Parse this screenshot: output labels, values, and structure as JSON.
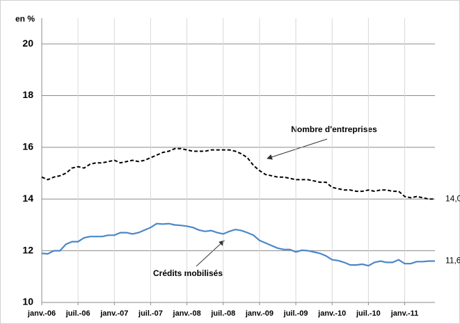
{
  "chart_data": {
    "type": "line",
    "y_label": "en %",
    "categories": [
      "janv.-06",
      null,
      null,
      null,
      null,
      null,
      "juil.-06",
      null,
      null,
      null,
      null,
      null,
      "janv.-07",
      null,
      null,
      null,
      null,
      null,
      "juil.-07",
      null,
      null,
      null,
      null,
      null,
      "janv.-08",
      null,
      null,
      null,
      null,
      null,
      "juil.-08",
      null,
      null,
      null,
      null,
      null,
      "janv.-09",
      null,
      null,
      null,
      null,
      null,
      "juil.-09",
      null,
      null,
      null,
      null,
      null,
      "janv.-10",
      null,
      null,
      null,
      null,
      null,
      "juil.-10",
      null,
      null,
      null,
      null,
      null,
      "janv.-11",
      null,
      null,
      null,
      null,
      null
    ],
    "series": [
      {
        "name": "Nombre d'entreprises",
        "color": "#000000",
        "dashed": true,
        "values": [
          14.85,
          14.75,
          14.85,
          14.9,
          15.0,
          15.2,
          15.25,
          15.2,
          15.35,
          15.4,
          15.4,
          15.45,
          15.5,
          15.4,
          15.45,
          15.5,
          15.45,
          15.5,
          15.6,
          15.7,
          15.8,
          15.85,
          15.95,
          15.95,
          15.9,
          15.85,
          15.85,
          15.85,
          15.9,
          15.9,
          15.9,
          15.9,
          15.85,
          15.75,
          15.6,
          15.3,
          15.1,
          14.95,
          14.9,
          14.85,
          14.85,
          14.8,
          14.75,
          14.75,
          14.75,
          14.7,
          14.65,
          14.65,
          14.45,
          14.4,
          14.35,
          14.35,
          14.3,
          14.3,
          14.35,
          14.3,
          14.35,
          14.35,
          14.3,
          14.3,
          14.1,
          14.05,
          14.1,
          14.05,
          14.0,
          14.0
        ],
        "value_labels": [
          null,
          null,
          null,
          null,
          null,
          null,
          null,
          null,
          null,
          null,
          null,
          null,
          null,
          null,
          null,
          null,
          null,
          null,
          null,
          null,
          null,
          null,
          null,
          null,
          null,
          null,
          null,
          null,
          null,
          null,
          null,
          null,
          null,
          null,
          null,
          null,
          null,
          null,
          null,
          null,
          null,
          null,
          null,
          null,
          null,
          null,
          null,
          null,
          null,
          null,
          null,
          null,
          null,
          null,
          null,
          null,
          null,
          null,
          null,
          null,
          null,
          null,
          null,
          null,
          null,
          "14,0"
        ]
      },
      {
        "name": "Crédits mobilisés",
        "color": "#4a86c8",
        "dashed": false,
        "values": [
          11.9,
          11.88,
          12.0,
          12.0,
          12.25,
          12.35,
          12.35,
          12.5,
          12.55,
          12.55,
          12.55,
          12.6,
          12.6,
          12.7,
          12.7,
          12.65,
          12.7,
          12.8,
          12.9,
          13.05,
          13.03,
          13.05,
          13.0,
          12.98,
          12.95,
          12.9,
          12.8,
          12.75,
          12.78,
          12.7,
          12.65,
          12.75,
          12.82,
          12.78,
          12.7,
          12.6,
          12.4,
          12.3,
          12.2,
          12.1,
          12.05,
          12.05,
          11.95,
          12.02,
          12.0,
          11.95,
          11.9,
          11.8,
          11.65,
          11.62,
          11.55,
          11.45,
          11.45,
          11.48,
          11.42,
          11.55,
          11.6,
          11.55,
          11.55,
          11.65,
          11.5,
          11.5,
          11.58,
          11.58,
          11.6,
          11.6
        ],
        "value_labels": [
          null,
          null,
          null,
          null,
          null,
          null,
          null,
          null,
          null,
          null,
          null,
          null,
          null,
          null,
          null,
          null,
          null,
          null,
          null,
          null,
          null,
          null,
          null,
          null,
          null,
          null,
          null,
          null,
          null,
          null,
          null,
          null,
          null,
          null,
          null,
          null,
          null,
          null,
          null,
          null,
          null,
          null,
          null,
          null,
          null,
          null,
          null,
          null,
          null,
          null,
          null,
          null,
          null,
          null,
          null,
          null,
          null,
          null,
          null,
          null,
          null,
          null,
          null,
          null,
          null,
          "11,6"
        ]
      }
    ],
    "annotations": [
      "Nombre d'entreprises",
      "Crédits mobilisés"
    ],
    "ylim": [
      10,
      21
    ],
    "yticks": [
      10,
      12,
      14,
      16,
      18,
      20
    ],
    "grid": true
  }
}
